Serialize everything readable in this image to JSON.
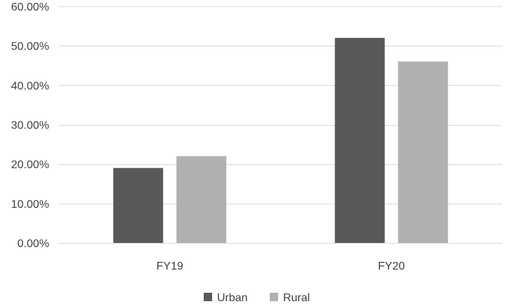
{
  "chart_data": {
    "type": "bar",
    "title": "",
    "xlabel": "",
    "ylabel": "",
    "categories": [
      "FY19",
      "FY20"
    ],
    "series": [
      {
        "name": "Urban",
        "values": [
          0.19,
          0.52
        ],
        "color": "#595959"
      },
      {
        "name": "Rural",
        "values": [
          0.22,
          0.46
        ],
        "color": "#b0b0b0"
      }
    ],
    "ylim": [
      0,
      0.6
    ],
    "yticks": [
      0,
      0.1,
      0.2,
      0.3,
      0.4,
      0.5,
      0.6
    ],
    "ytick_labels": [
      "0.00%",
      "10.00%",
      "20.00%",
      "30.00%",
      "40.00%",
      "50.00%",
      "60.00%"
    ],
    "grid": true,
    "grid_color": "#d9d9d9",
    "legend_position": "bottom"
  }
}
